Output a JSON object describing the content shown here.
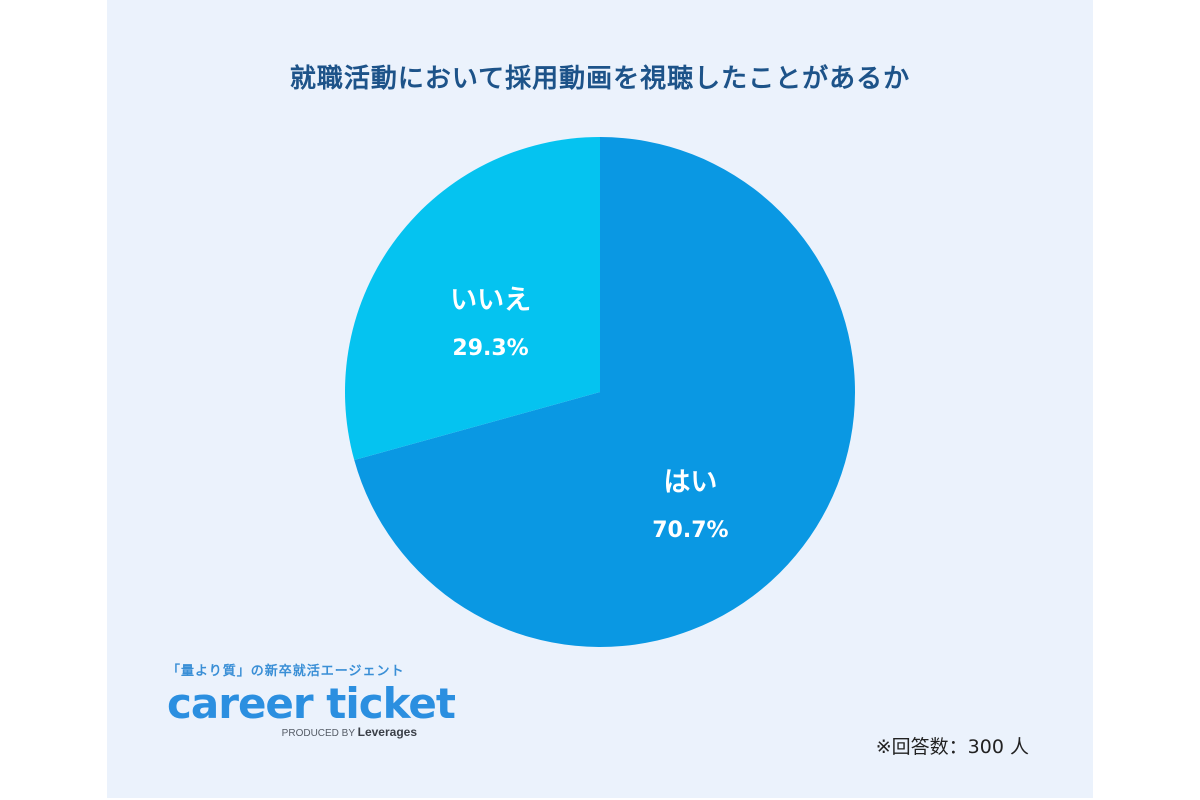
{
  "chart_data": {
    "type": "pie",
    "title": "就職活動において採用動画を視聴したことがあるか",
    "slices": [
      {
        "label": "はい",
        "value": 70.7,
        "value_label": "70.7%",
        "color": "#0a98e3"
      },
      {
        "label": "いいえ",
        "value": 29.3,
        "value_label": "29.3%",
        "color": "#05c3f0"
      }
    ],
    "start_angle": "12 o'clock",
    "direction": "clockwise"
  },
  "branding": {
    "tagline": "「量より質」の新卒就活エージェント",
    "logo_text": "career ticket",
    "produced_by_prefix": "PRODUCED BY",
    "produced_by_name": "Leverages"
  },
  "footnote": "※回答数：300 人",
  "colors": {
    "background": "#ebf2fc",
    "title": "#1d5389",
    "brand": "#2b8fe0"
  }
}
